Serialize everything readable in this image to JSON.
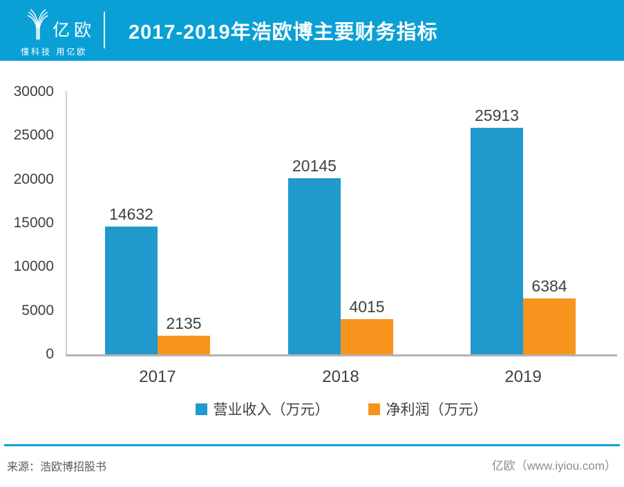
{
  "header": {
    "logo_name": "亿欧",
    "logo_tagline": "懂科技 用亿欧",
    "title": "2017-2019年浩欧博主要财务指标",
    "bg_color": "#0aa0d6"
  },
  "chart_data": {
    "type": "bar",
    "title": "2017-2019年浩欧博主要财务指标",
    "categories": [
      "2017",
      "2018",
      "2019"
    ],
    "series": [
      {
        "name": "营业收入（万元）",
        "color": "#2099cc",
        "values": [
          14632,
          20145,
          25913
        ]
      },
      {
        "name": "净利润（万元）",
        "color": "#f7941e",
        "values": [
          2135,
          4015,
          6384
        ]
      }
    ],
    "ylim": [
      0,
      30000
    ],
    "ytick_interval": 5000,
    "yticks": [
      30000,
      25000,
      20000,
      15000,
      10000,
      5000,
      0
    ],
    "xlabel": "",
    "ylabel": "",
    "grid": false,
    "legend_position": "bottom",
    "value_labels": true
  },
  "footer": {
    "source": "来源：浩欧博招股书",
    "credit": "亿欧（www.iyiou.com）",
    "line_color": "#0aa0d6"
  }
}
